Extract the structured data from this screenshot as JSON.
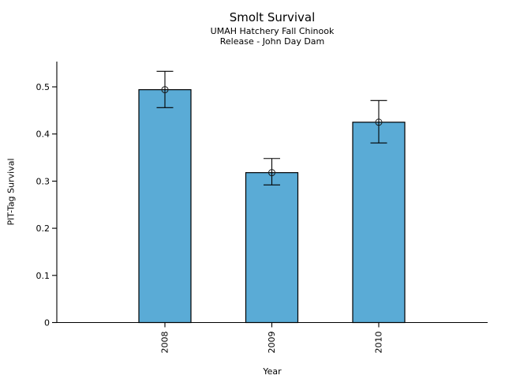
{
  "chart_data": {
    "type": "bar",
    "title": "Smolt Survival",
    "subtitle": [
      "UMAH Hatchery Fall Chinook",
      "Release - John Day Dam"
    ],
    "xlabel": "Year",
    "ylabel": "PIT-Tag Survival",
    "categories": [
      "2008",
      "2009",
      "2010"
    ],
    "values": [
      0.494,
      0.318,
      0.425
    ],
    "error_bars": {
      "upper": [
        0.533,
        0.348,
        0.471
      ],
      "lower": [
        0.456,
        0.292,
        0.381
      ]
    },
    "yticks": [
      0,
      0.1,
      0.2,
      0.3,
      0.4,
      0.5
    ],
    "ytick_labels": [
      "0",
      "0.1",
      "0.2",
      "0.3",
      "0.4",
      "0.5"
    ],
    "ylim": [
      0,
      0.55
    ],
    "grid": false,
    "legend": null,
    "x_tick_label_rotation": 90,
    "marker": "open-circle",
    "bar_fill_color": "#5AABD6",
    "bar_edge_color": "#000000",
    "axis_color": "#000000",
    "text_color": "#000000"
  }
}
